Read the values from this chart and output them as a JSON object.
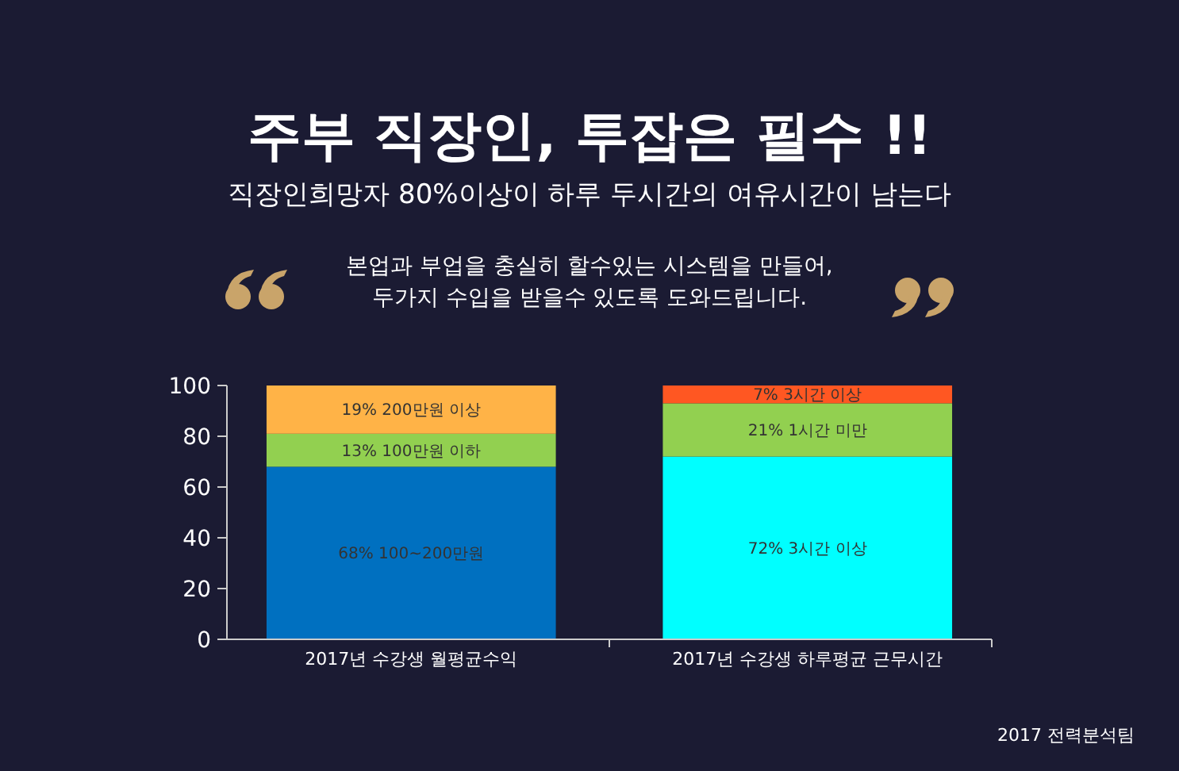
{
  "chart_data": {
    "type": "bar",
    "stacked": true,
    "title": "주부 직장인, 투잡은 필수 !!",
    "subtitle": "직장인희망자 80%이상이 하루 두시간의 여유시간이 남는다",
    "annotations": [
      "본업과 부업을 충실히 할수있는 시스템을 만들어,\n두가지 수입을 받을수 있도록 도와드립니다.",
      "2017 전력분석팀"
    ],
    "categories": [
      "2017년 수강생 월평균수익",
      "2017년 수강생 하루평균 근무시간"
    ],
    "series": [
      {
        "colors": [
          "#0070c0",
          "#00ffff"
        ],
        "values": [
          68,
          72
        ],
        "value_labels": [
          "68%  100~200만원",
          "72%  3시간 이상"
        ]
      },
      {
        "colors": [
          "#92d050",
          "#92d050"
        ],
        "values": [
          13,
          21
        ],
        "value_labels": [
          "13%  100만원 이하",
          "21%  1시간 미만"
        ]
      },
      {
        "colors": [
          "#ffb347",
          "#ff5722"
        ],
        "values": [
          19,
          7
        ],
        "value_labels": [
          "19%  200만원 이상",
          "7%  3시간 이상"
        ]
      }
    ],
    "ylim": [
      0,
      100
    ],
    "yticks": [
      0,
      20,
      40,
      60,
      80,
      100
    ],
    "grid": false
  }
}
